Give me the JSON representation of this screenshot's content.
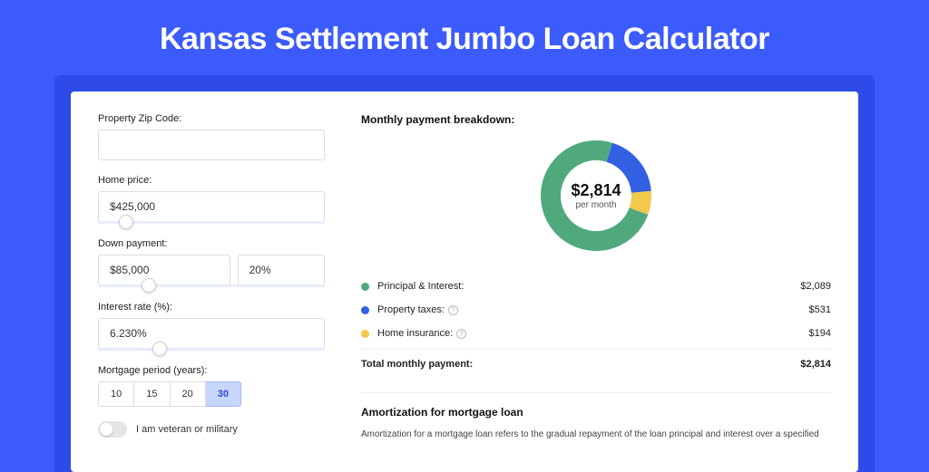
{
  "page_title": "Kansas Settlement Jumbo Loan Calculator",
  "colors": {
    "page_bg": "#3b5bfd",
    "card_wrap_bg": "#2e4be8",
    "card_bg": "#ffffff",
    "active_period_bg": "#c7d5ff",
    "slider_track": "#e7ecff"
  },
  "form": {
    "zip": {
      "label": "Property Zip Code:",
      "value": ""
    },
    "home_price": {
      "label": "Home price:",
      "value": "$425,000",
      "slider_pos_pct": 9
    },
    "down_payment": {
      "label": "Down payment:",
      "amount": "$85,000",
      "pct": "20%",
      "slider_pos_pct": 19
    },
    "interest_rate": {
      "label": "Interest rate (%):",
      "value": "6.230%",
      "slider_pos_pct": 24
    },
    "mortgage_period": {
      "label": "Mortgage period (years):",
      "options": [
        "10",
        "15",
        "20",
        "30"
      ],
      "selected": "30"
    },
    "veteran": {
      "label": "I am veteran or military",
      "checked": false
    }
  },
  "breakdown": {
    "title": "Monthly payment breakdown:",
    "center_amount": "$2,814",
    "center_sub": "per month",
    "items": [
      {
        "label": "Principal & Interest:",
        "value": "$2,089",
        "color": "#4fa97d",
        "info": false,
        "numeric": 2089
      },
      {
        "label": "Property taxes:",
        "value": "$531",
        "color": "#3360e3",
        "info": true,
        "numeric": 531
      },
      {
        "label": "Home insurance:",
        "value": "$194",
        "color": "#f2c94c",
        "info": true,
        "numeric": 194
      }
    ],
    "total": {
      "label": "Total monthly payment:",
      "value": "$2,814",
      "numeric": 2814
    },
    "donut": {
      "stroke_width": 22,
      "radius": 50,
      "size": 130
    }
  },
  "amortization": {
    "title": "Amortization for mortgage loan",
    "text": "Amortization for a mortgage loan refers to the gradual repayment of the loan principal and interest over a specified"
  }
}
